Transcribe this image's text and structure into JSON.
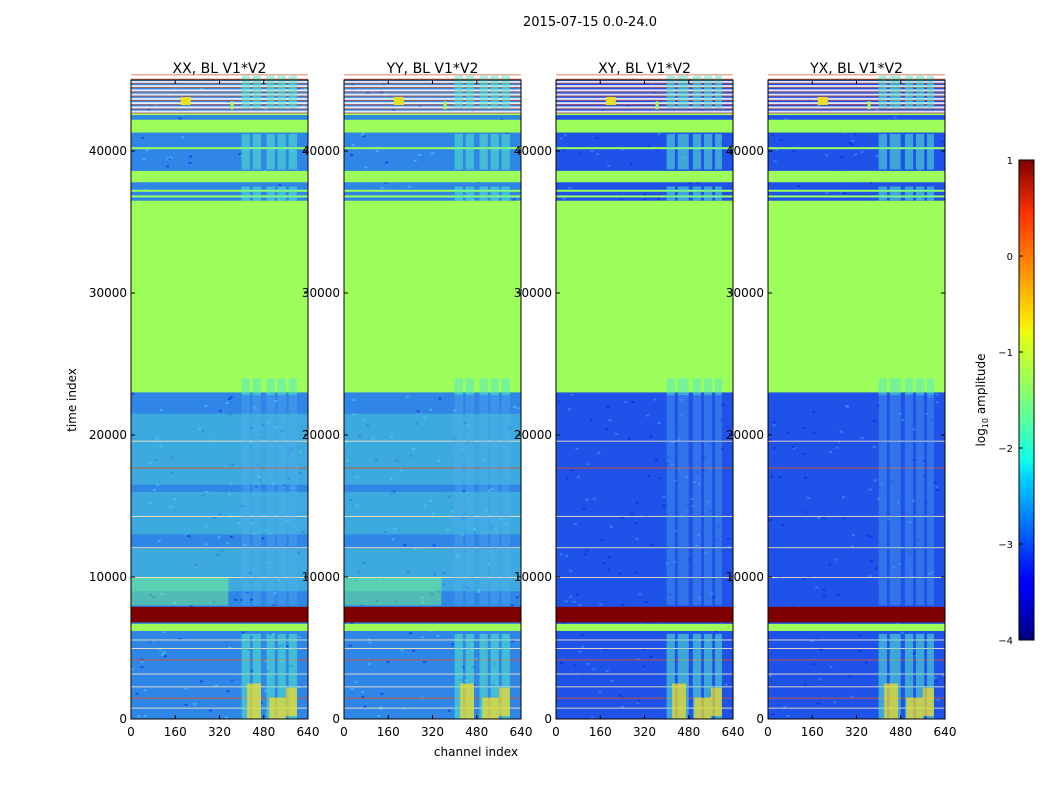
{
  "figure_title": "2015-07-15 0.0-24.0",
  "chart_data": {
    "type": "heatmap",
    "suptitle": "2015-07-15 0.0-24.0",
    "xlabel": "channel index",
    "ylabel": "time index",
    "xlim": [
      0,
      640
    ],
    "ylim": [
      0,
      45000
    ],
    "x_ticks": [
      0,
      160,
      320,
      480,
      640
    ],
    "y_ticks": [
      0,
      10000,
      20000,
      30000,
      40000
    ],
    "panels": [
      {
        "title": "XX, BL V1*V2",
        "kind": "parallel"
      },
      {
        "title": "YY, BL V1*V2",
        "kind": "parallel"
      },
      {
        "title": "XY, BL V1*V2",
        "kind": "cross"
      },
      {
        "title": "YX, BL V1*V2",
        "kind": "cross"
      }
    ],
    "flagged_fill_range": [
      23000,
      36500
    ],
    "saturated_range": [
      6800,
      7900
    ],
    "rfi_channel_range": [
      400,
      600
    ],
    "colorbar": {
      "label": "log10 amplitude",
      "label_main": "log",
      "label_sub": "10",
      "label_tail": " amplitude",
      "range": [
        -4,
        1
      ],
      "ticks": [
        -4,
        -3,
        -2,
        -1,
        0,
        1
      ],
      "colormap": "jet"
    }
  }
}
